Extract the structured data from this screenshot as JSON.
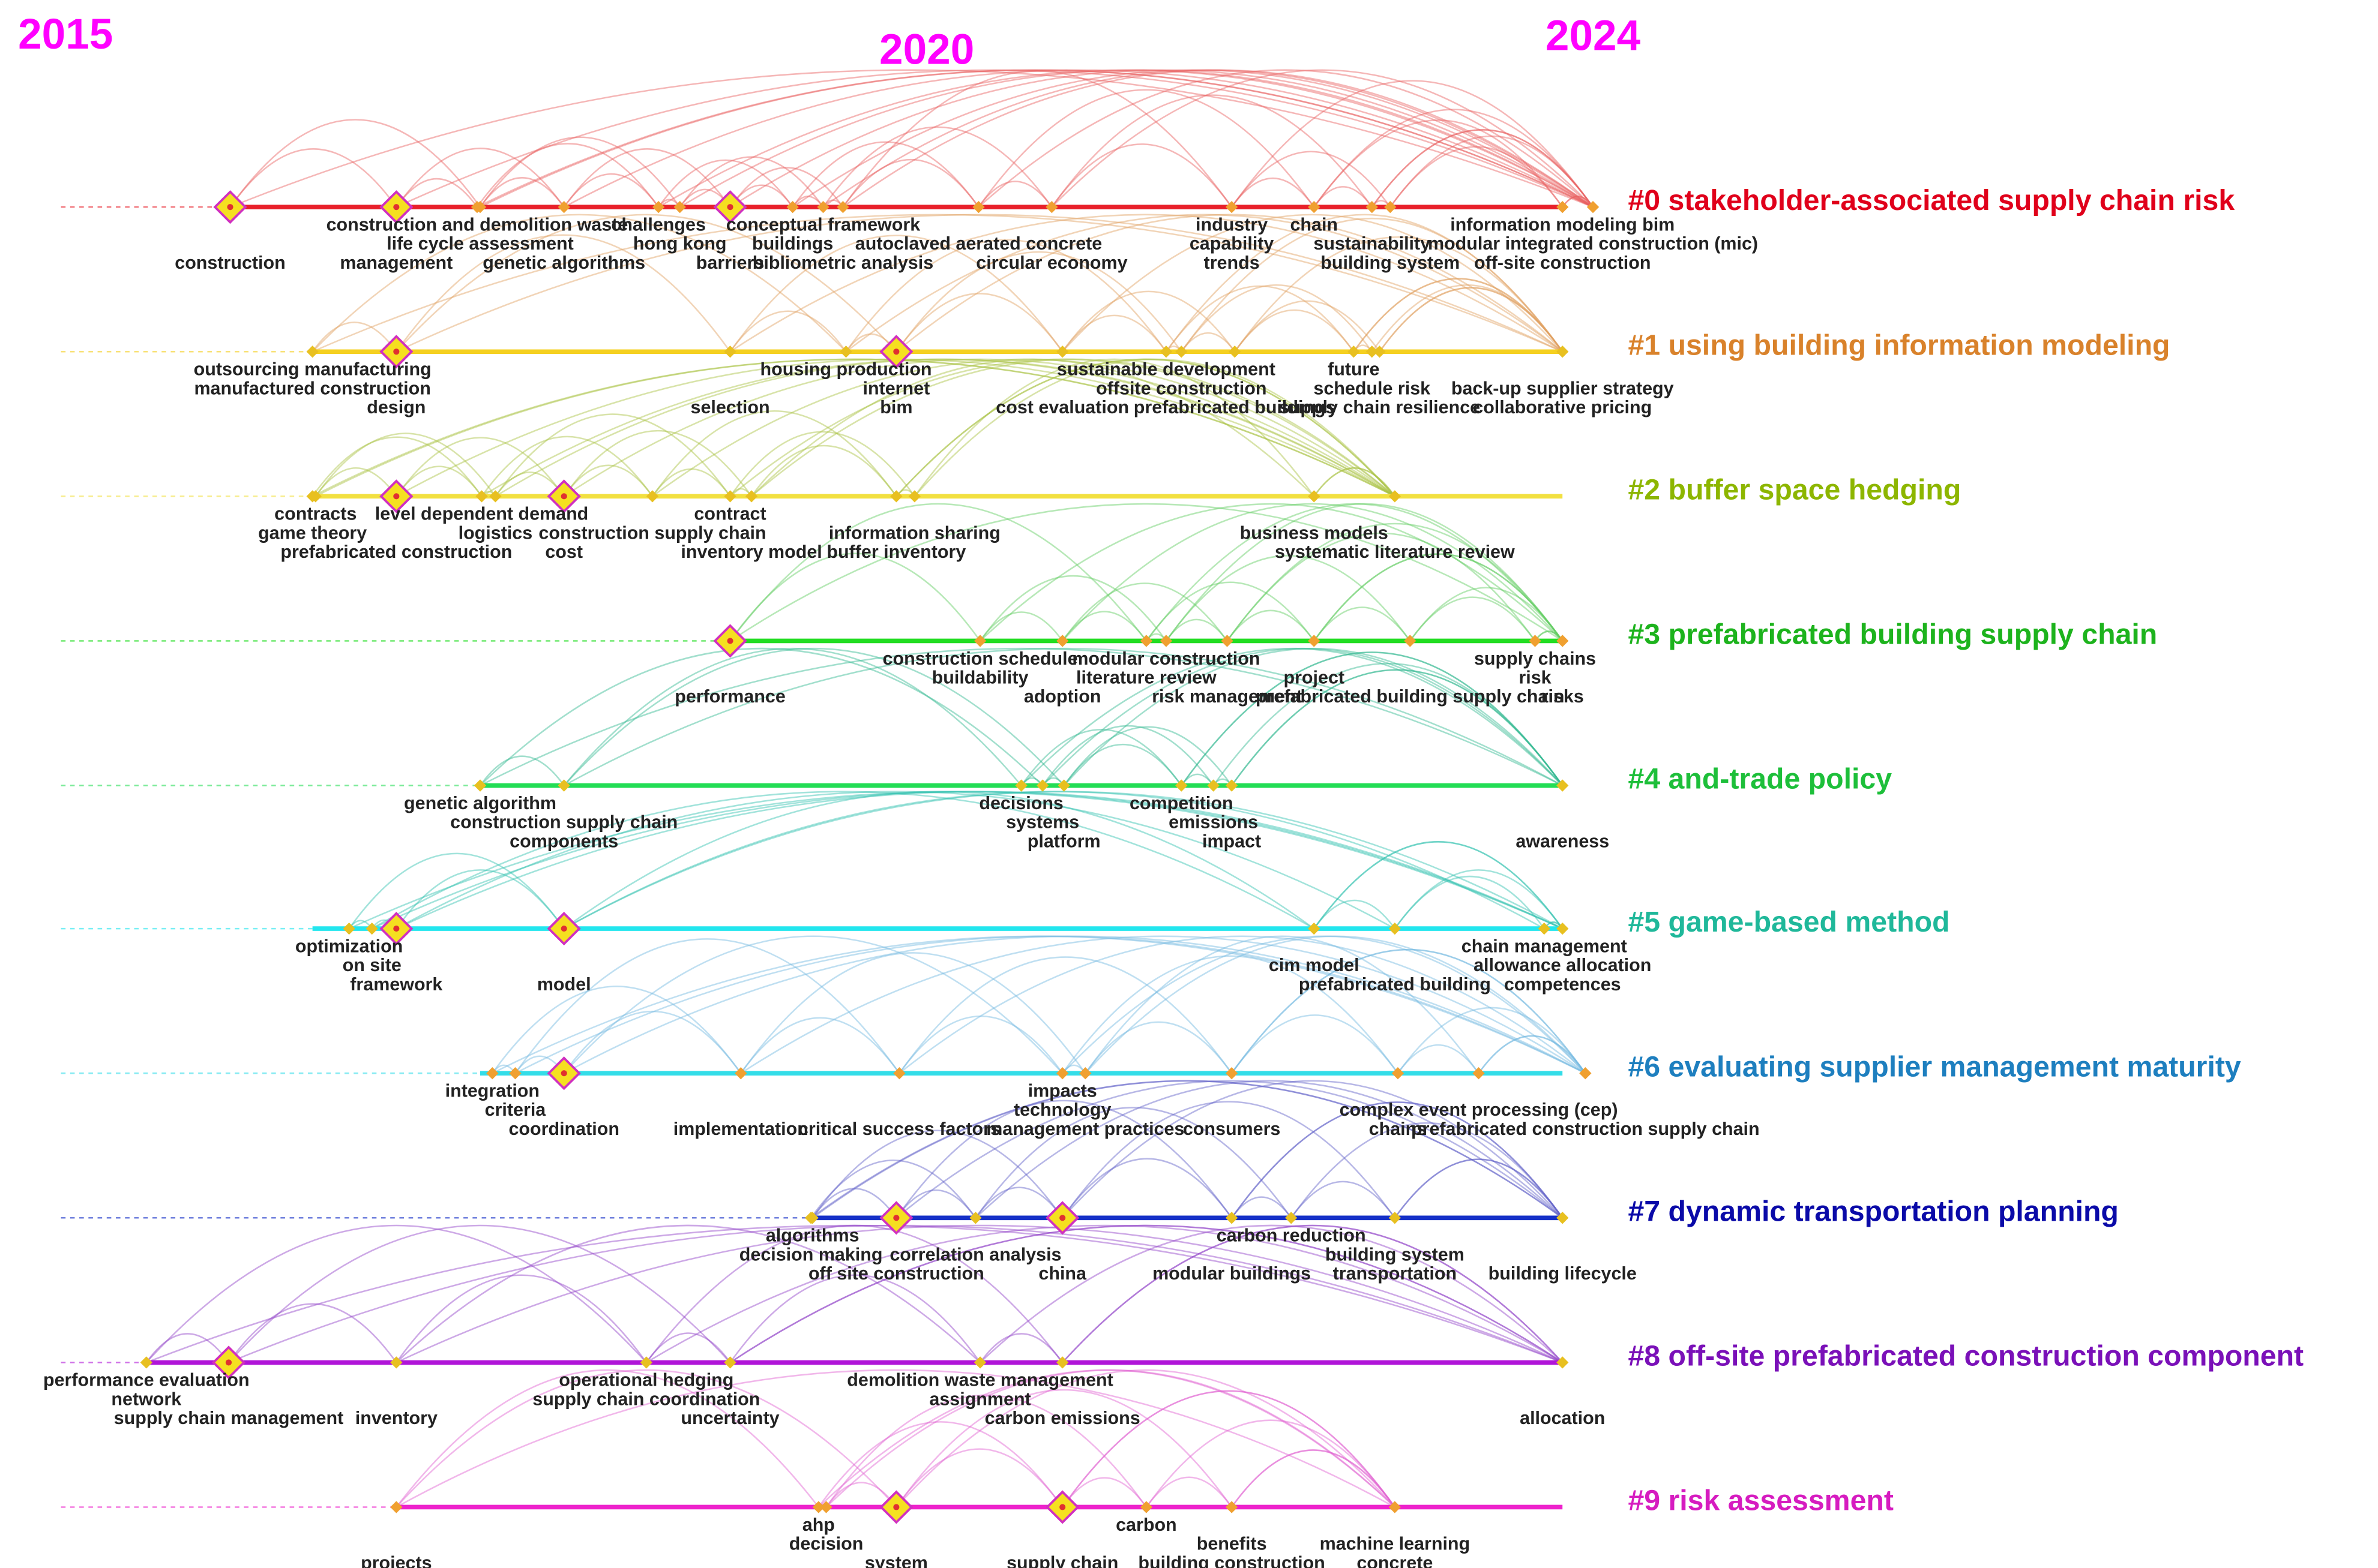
{
  "years": [
    "2015",
    "2020",
    "2024"
  ],
  "clusters": [
    {
      "label": "#0 stakeholder-associated supply chain risk",
      "keywords": [
        "construction",
        "construction and demolition waste",
        "challenges",
        "conceptual framework",
        "life cycle assessment",
        "hong kong",
        "buildings",
        "autoclaved aerated concrete",
        "management",
        "genetic algorithms",
        "barriers",
        "bibliometric analysis",
        "circular economy",
        "industry",
        "capability",
        "trends",
        "chain",
        "sustainability",
        "building system",
        "information modeling bim",
        "modular integrated construction (mic)",
        "off-site construction"
      ]
    },
    {
      "label": "#1 using building information modeling",
      "keywords": [
        "outsourcing manufacturing",
        "manufactured construction",
        "design",
        "selection",
        "housing production",
        "internet",
        "bim",
        "sustainable development",
        "offsite construction",
        "cost evaluation",
        "prefabricated buildings",
        "future",
        "schedule risk",
        "supply chain resilience",
        "back-up supplier strategy",
        "collaborative pricing"
      ]
    },
    {
      "label": "#2 buffer space hedging",
      "keywords": [
        "contracts",
        "level dependent demand",
        "game theory",
        "logistics",
        "construction supply chain",
        "prefabricated construction",
        "cost",
        "contract",
        "information sharing",
        "inventory model",
        "buffer inventory",
        "business models",
        "systematic literature review"
      ]
    },
    {
      "label": "#3 prefabricated building supply chain",
      "keywords": [
        "performance",
        "construction schedule",
        "buildability",
        "adoption",
        "modular construction",
        "literature review",
        "risk management",
        "project",
        "prefabricated building supply chain",
        "supply chains",
        "risk",
        "risks"
      ]
    },
    {
      "label": "#4 and-trade policy",
      "keywords": [
        "genetic algorithm",
        "construction supply chain",
        "components",
        "decisions",
        "systems",
        "platform",
        "competition",
        "emissions",
        "impact",
        "awareness"
      ]
    },
    {
      "label": "#5 game-based method",
      "keywords": [
        "optimization",
        "on site",
        "framework",
        "model",
        "cim model",
        "prefabricated building",
        "chain management",
        "allowance allocation",
        "competences"
      ]
    },
    {
      "label": "#6 evaluating supplier management maturity",
      "keywords": [
        "integration",
        "criteria",
        "coordination",
        "implementation",
        "critical success factors",
        "management practices",
        "impacts",
        "technology",
        "consumers",
        "complex event processing (cep)",
        "chains",
        "prefabricated construction supply chain"
      ]
    },
    {
      "label": "#7 dynamic transportation planning",
      "keywords": [
        "algorithms",
        "decision making",
        "correlation analysis",
        "off site construction",
        "china",
        "carbon reduction",
        "building system",
        "modular buildings",
        "transportation",
        "building lifecycle"
      ]
    },
    {
      "label": "#8 off-site prefabricated construction component",
      "keywords": [
        "performance evaluation",
        "network",
        "supply chain management",
        "inventory",
        "operational hedging",
        "supply chain coordination",
        "uncertainty",
        "demolition waste management",
        "assignment",
        "carbon emissions",
        "allocation"
      ]
    },
    {
      "label": "#9 risk assessment",
      "keywords": [
        "projects",
        "ahp",
        "decision",
        "system",
        "supply chain",
        "carbon",
        "benefits",
        "building construction",
        "machine learning",
        "concrete"
      ]
    }
  ]
}
